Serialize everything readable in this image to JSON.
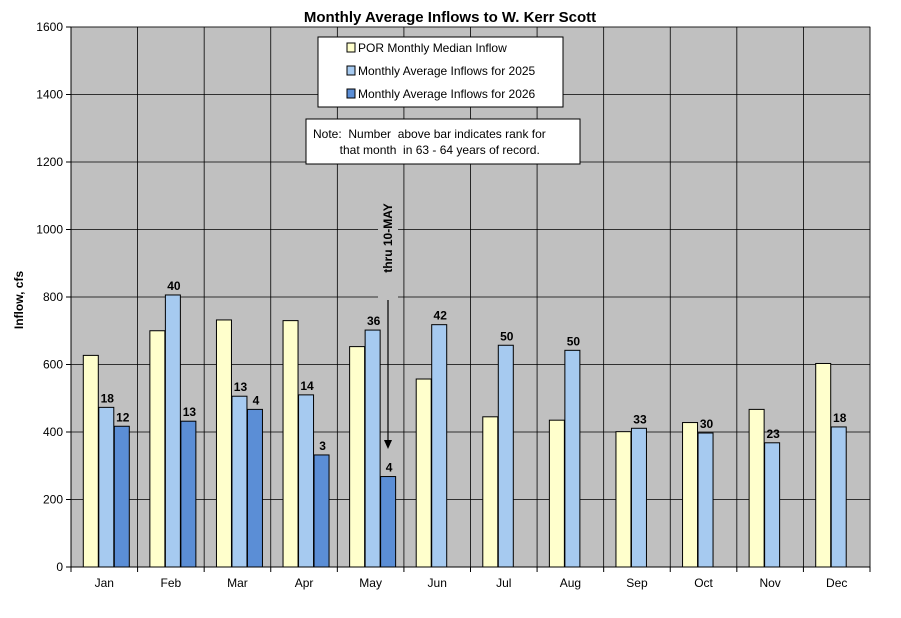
{
  "chart_data": {
    "type": "bar",
    "title": "Monthly Average Inflows to W. Kerr Scott",
    "xlabel": "",
    "ylabel": "Inflow, cfs",
    "ylim": [
      0,
      1600
    ],
    "yticks": [
      0,
      200,
      400,
      600,
      800,
      1000,
      1200,
      1400,
      1600
    ],
    "grid": true,
    "legend_position": "top-center",
    "categories": [
      "Jan",
      "Feb",
      "Mar",
      "Apr",
      "May",
      "Jun",
      "Jul",
      "Aug",
      "Sep",
      "Oct",
      "Nov",
      "Dec"
    ],
    "series": [
      {
        "name": "POR Monthly Median Inflow",
        "color": "#FFFFCC",
        "values": [
          627,
          700,
          732,
          730,
          653,
          557,
          445,
          435,
          401,
          428,
          467,
          603
        ],
        "ranks": [
          null,
          null,
          null,
          null,
          null,
          null,
          null,
          null,
          null,
          null,
          null,
          null
        ]
      },
      {
        "name": "Monthly Average Inflows for 2025",
        "color": "#A6CAF0",
        "values": [
          473,
          806,
          506,
          510,
          702,
          718,
          657,
          642,
          411,
          397,
          368,
          415
        ],
        "ranks": [
          "18",
          "40",
          "13",
          "14",
          "36",
          "42",
          "50",
          "50",
          "33",
          "30",
          "23",
          "18"
        ]
      },
      {
        "name": "Monthly Average Inflows for 2026",
        "color": "#5B8ED6",
        "values": [
          417,
          432,
          467,
          332,
          268,
          null,
          null,
          null,
          null,
          null,
          null,
          null
        ],
        "ranks": [
          "12",
          "13",
          "4",
          "3",
          "4",
          null,
          null,
          null,
          null,
          null,
          null,
          null
        ]
      }
    ],
    "note": "Note:  Number  above bar indicates rank for\n        that month  in 63 - 64 years of record.",
    "annotation": "thru 10-MAY",
    "plot_background": "#C0C0C0"
  }
}
